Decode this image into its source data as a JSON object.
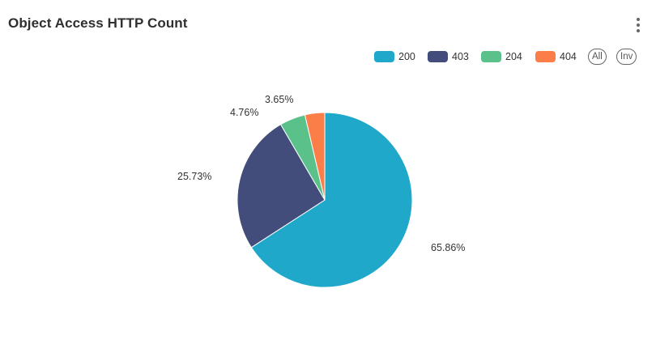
{
  "panel": {
    "title": "Object Access HTTP Count",
    "menu_icon": "kebab-vertical-icon"
  },
  "legend": {
    "items": [
      {
        "label": "200",
        "color": "#20a8cb"
      },
      {
        "label": "403",
        "color": "#434d7c"
      },
      {
        "label": "204",
        "color": "#5bc18b"
      },
      {
        "label": "404",
        "color": "#fb7d48"
      }
    ],
    "all_label": "All",
    "inverse_label": "Inv"
  },
  "chart_data": {
    "type": "pie",
    "categories": [
      "200",
      "403",
      "204",
      "404"
    ],
    "values": [
      65.86,
      25.73,
      4.76,
      3.65
    ],
    "labels": [
      "65.86%",
      "25.73%",
      "4.76%",
      "3.65%"
    ],
    "colors": [
      "#20a8cb",
      "#434d7c",
      "#5bc18b",
      "#fb7d48"
    ],
    "start_angle": "12 o'clock",
    "direction": "clockwise",
    "legend_position": "top-right",
    "title": "Object Access HTTP Count"
  }
}
